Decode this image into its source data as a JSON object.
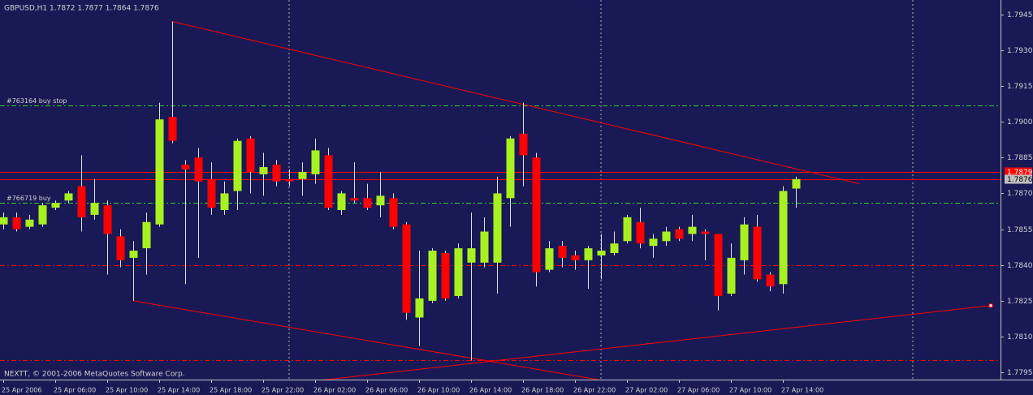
{
  "chart_data": {
    "type": "candlestick",
    "title": "GBPUSD,H1  1.7872 1.7877 1.7864 1.7876",
    "footer": "NEXTT, © 2001-2006 MetaQuotes Software Corp.",
    "categories": [
      "25 Apr 2006",
      null,
      null,
      null,
      "25 Apr 06:00",
      null,
      null,
      null,
      "25 Apr 10:00",
      null,
      null,
      null,
      "25 Apr 14:00",
      null,
      null,
      null,
      "25 Apr 18:00",
      null,
      null,
      null,
      "25 Apr 22:00",
      null,
      null,
      null,
      "26 Apr 02:00",
      null,
      null,
      null,
      "26 Apr 06:00",
      null,
      null,
      null,
      "26 Apr 10:00",
      null,
      null,
      null,
      "26 Apr 14:00",
      null,
      null,
      null,
      "26 Apr 18:00",
      null,
      null,
      null,
      "26 Apr 22:00",
      null,
      null,
      null,
      "27 Apr 02:00",
      null,
      null,
      null,
      "27 Apr 06:00",
      null,
      null,
      null,
      "27 Apr 10:00",
      null,
      null,
      null,
      "27 Apr 14:00",
      null
    ],
    "open": [
      1.7857,
      1.786,
      1.7856,
      1.7857,
      1.7864,
      1.7867,
      1.7873,
      1.7861,
      1.7865,
      1.7852,
      1.7843,
      1.7847,
      1.7857,
      1.7902,
      1.7882,
      1.7885,
      1.7876,
      1.7863,
      1.7871,
      1.7893,
      1.7878,
      1.7882,
      1.7876,
      1.7876,
      1.7878,
      1.7886,
      1.7863,
      1.7868,
      1.7868,
      1.7865,
      1.7868,
      1.7857,
      1.7818,
      1.7825,
      1.7845,
      1.7827,
      1.7841,
      1.7841,
      1.7841,
      1.7868,
      1.7895,
      1.7885,
      1.7838,
      1.7848,
      1.7844,
      1.7842,
      1.7844,
      1.7845,
      1.785,
      1.7858,
      1.7848,
      1.785,
      1.7855,
      1.7853,
      1.7854,
      1.7853,
      1.7828,
      1.7842,
      1.7856,
      1.7836,
      1.7832,
      1.7872
    ],
    "high": [
      1.7862,
      1.7862,
      1.7861,
      1.7866,
      1.7867,
      1.7871,
      1.7886,
      1.7876,
      1.7867,
      1.7855,
      1.785,
      1.7862,
      1.7908,
      1.7942,
      1.7884,
      1.7889,
      1.7883,
      1.7875,
      1.7893,
      1.7894,
      1.7887,
      1.7884,
      1.788,
      1.7883,
      1.7893,
      1.7889,
      1.7871,
      1.7883,
      1.7874,
      1.7879,
      1.787,
      1.7858,
      1.7846,
      1.7847,
      1.7846,
      1.7849,
      1.7862,
      1.786,
      1.7877,
      1.7894,
      1.7908,
      1.7887,
      1.785,
      1.785,
      1.7846,
      1.7848,
      1.7853,
      1.7854,
      1.7861,
      1.7864,
      1.7853,
      1.7856,
      1.7856,
      1.7861,
      1.7855,
      1.7853,
      1.7849,
      1.786,
      1.7861,
      1.7837,
      1.7873,
      1.7877
    ],
    "low": [
      1.7855,
      1.7854,
      1.7855,
      1.7856,
      1.7863,
      1.7866,
      1.7854,
      1.7859,
      1.7836,
      1.7839,
      1.7825,
      1.7836,
      1.7856,
      1.7891,
      1.7832,
      1.7843,
      1.7861,
      1.7861,
      1.7863,
      1.787,
      1.7869,
      1.7873,
      1.7873,
      1.7869,
      1.7874,
      1.7863,
      1.7861,
      1.7866,
      1.7863,
      1.786,
      1.7855,
      1.7817,
      1.7806,
      1.7824,
      1.7825,
      1.7826,
      1.78,
      1.7839,
      1.7828,
      1.7856,
      1.7873,
      1.7831,
      1.7837,
      1.7839,
      1.7838,
      1.783,
      1.7834,
      1.7844,
      1.7849,
      1.7847,
      1.7843,
      1.7848,
      1.785,
      1.785,
      1.7842,
      1.7821,
      1.7827,
      1.7836,
      1.7833,
      1.7829,
      1.7828,
      1.7864
    ],
    "close": [
      1.786,
      1.7855,
      1.7859,
      1.7865,
      1.7866,
      1.787,
      1.786,
      1.7866,
      1.7853,
      1.7842,
      1.7846,
      1.7858,
      1.7901,
      1.7892,
      1.788,
      1.7875,
      1.7864,
      1.787,
      1.7892,
      1.7879,
      1.7881,
      1.7875,
      1.7875,
      1.7879,
      1.7888,
      1.7864,
      1.787,
      1.7867,
      1.7864,
      1.7869,
      1.7856,
      1.782,
      1.7826,
      1.7846,
      1.7826,
      1.7847,
      1.7847,
      1.7854,
      1.787,
      1.7893,
      1.7886,
      1.7837,
      1.7847,
      1.7843,
      1.7842,
      1.7847,
      1.7846,
      1.7849,
      1.786,
      1.7849,
      1.7851,
      1.7854,
      1.7851,
      1.7856,
      1.7853,
      1.7827,
      1.7843,
      1.7857,
      1.7834,
      1.7831,
      1.7871,
      1.7876
    ],
    "up_color": "#a8f020",
    "down_color": "#ff0000",
    "wick_color": "#e0e0e0",
    "ylim": [
      1.7792,
      1.7951
    ],
    "yticks": [
      1.7945,
      {
        "value": 1.793,
        "label": "1.7930"
      },
      1.7915,
      {
        "value": 1.79,
        "label": "1.7900"
      },
      1.7885,
      {
        "value": 1.787,
        "label": "1.7870"
      },
      1.7855,
      {
        "value": 1.784,
        "label": "1.7840"
      },
      1.7825,
      {
        "value": 1.781,
        "label": "1.7810"
      },
      1.7795
    ],
    "levels": [
      {
        "name": "#763164 buy stop",
        "value": 1.7907,
        "color": "#32cd32",
        "style": "dashdot"
      },
      {
        "name": "#766719 buy",
        "value": 1.7866,
        "color": "#32cd32",
        "style": "dashdot"
      },
      {
        "value": 1.784,
        "color": "#ff0000",
        "style": "dashdot"
      },
      {
        "value": 1.78,
        "color": "#ff0000",
        "style": "dashdot"
      },
      {
        "value": 1.7879,
        "color": "#ff0000",
        "style": "solid",
        "box": "#ff0000"
      },
      {
        "value": 1.7876,
        "color": "#ff0000",
        "style": "solid",
        "box": "#c0c0c0"
      }
    ],
    "trendlines": [
      {
        "color": "#ff0000",
        "points": [
          [
            13,
            1.7942
          ],
          [
            65.9,
            1.7874
          ]
        ]
      },
      {
        "color": "#ff0000",
        "points": [
          [
            10,
            1.7825
          ],
          [
            47.9,
            1.779
          ]
        ]
      },
      {
        "color": "#ff0000",
        "points": [
          [
            21.6,
            1.779
          ],
          [
            76,
            1.7823
          ]
        ],
        "end_marker": true
      }
    ]
  }
}
